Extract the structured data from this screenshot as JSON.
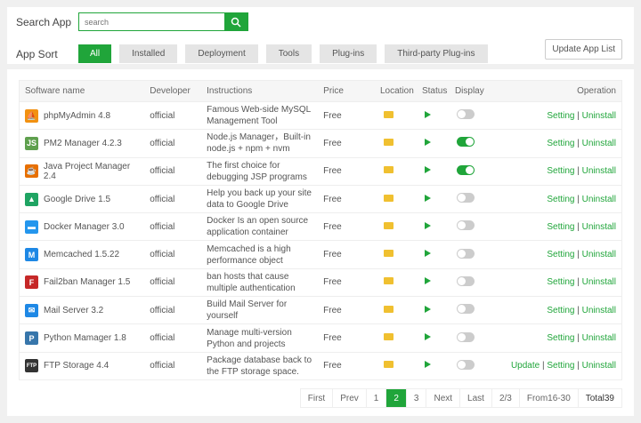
{
  "search": {
    "label": "Search App",
    "placeholder": "search"
  },
  "sort": {
    "label": "App Sort",
    "categories": [
      "All",
      "Installed",
      "Deployment",
      "Tools",
      "Plug-ins",
      "Third-party Plug-ins"
    ],
    "active": "All"
  },
  "update_button": "Update App List",
  "table": {
    "headers": [
      "Software name",
      "Developer",
      "Instructions",
      "Price",
      "Location",
      "Status",
      "Display",
      "Operation"
    ],
    "rows": [
      {
        "name": "phpMyAdmin 4.8",
        "icon": "phpmyadmin-icon",
        "developer": "official",
        "instructions": "Famous Web-side MySQL Management Tool",
        "price": "Free",
        "display": false,
        "ops": [
          "Setting",
          "Uninstall"
        ]
      },
      {
        "name": "PM2 Manager 4.2.3",
        "icon": "nodejs-icon",
        "developer": "official",
        "instructions": "Node.js Manager，Built-in node.js + npm + nvm",
        "price": "Free",
        "display": true,
        "ops": [
          "Setting",
          "Uninstall"
        ]
      },
      {
        "name": "Java Project Manager 2.4",
        "icon": "java-icon",
        "developer": "official",
        "instructions": "The first choice for debugging JSP programs",
        "price": "Free",
        "display": true,
        "ops": [
          "Setting",
          "Uninstall"
        ]
      },
      {
        "name": "Google Drive 1.5",
        "icon": "google-drive-icon",
        "developer": "official",
        "instructions": "Help you back up your site data to Google Drive",
        "price": "Free",
        "display": false,
        "ops": [
          "Setting",
          "Uninstall"
        ]
      },
      {
        "name": "Docker Manager 3.0",
        "icon": "docker-icon",
        "developer": "official",
        "instructions": "Docker Is an open source application container",
        "price": "Free",
        "display": false,
        "ops": [
          "Setting",
          "Uninstall"
        ]
      },
      {
        "name": "Memcached 1.5.22",
        "icon": "memcached-icon",
        "developer": "official",
        "instructions": "Memcached is a high performance object",
        "price": "Free",
        "display": false,
        "ops": [
          "Setting",
          "Uninstall"
        ]
      },
      {
        "name": "Fail2ban Manager 1.5",
        "icon": "fail2ban-icon",
        "developer": "official",
        "instructions": "ban hosts that cause multiple authentication",
        "price": "Free",
        "display": false,
        "ops": [
          "Setting",
          "Uninstall"
        ]
      },
      {
        "name": "Mail Server 3.2",
        "icon": "mail-icon",
        "developer": "official",
        "instructions": "Build Mail Server for yourself",
        "price": "Free",
        "display": false,
        "ops": [
          "Setting",
          "Uninstall"
        ]
      },
      {
        "name": "Python Mamager 1.8",
        "icon": "python-icon",
        "developer": "official",
        "instructions": "Manage multi-version Python and projects",
        "price": "Free",
        "display": false,
        "ops": [
          "Setting",
          "Uninstall"
        ]
      },
      {
        "name": "FTP Storage 4.4",
        "icon": "ftp-icon",
        "developer": "official",
        "instructions": "Package database back to the FTP storage space.",
        "price": "Free",
        "display": false,
        "ops": [
          "Update",
          "Setting",
          "Uninstall"
        ]
      }
    ]
  },
  "pagination": {
    "items": [
      "First",
      "Prev",
      "1",
      "2",
      "3",
      "Next",
      "Last",
      "2/3",
      "From16-30",
      "Total39"
    ],
    "current": "2"
  },
  "colors": {
    "accent": "#20a53a",
    "folder": "#f0c030"
  }
}
